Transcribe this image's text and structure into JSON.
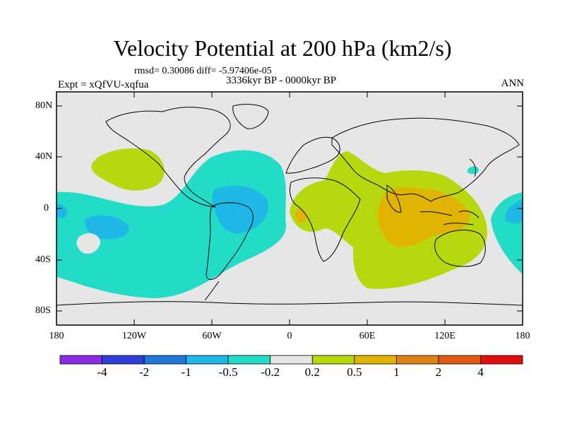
{
  "title": "Velocity Potential at 200 hPa (km2/s)",
  "stats_line": "rmsd= 0.30086 diff= -5.97406e-05",
  "period": "3336kyr BP - 0000kyr BP",
  "experiment": "Expt = xQfVU-xqfua",
  "season": "ANN",
  "y_ticks": [
    "80N",
    "40N",
    "0",
    "40S",
    "80S"
  ],
  "x_ticks": [
    "180",
    "120W",
    "60W",
    "0",
    "60E",
    "120E",
    "180"
  ],
  "colorbar": {
    "labels": [
      "-4",
      "-2",
      "-1",
      "-0.5",
      "-0.2",
      "0.2",
      "0.5",
      "1",
      "2",
      "4"
    ],
    "colors": [
      "#8a2be2",
      "#2f3fd6",
      "#1f78d8",
      "#1eb7e6",
      "#22dcc8",
      "#e6e6e6",
      "#b9d70f",
      "#e0b400",
      "#e08214",
      "#e05a10",
      "#e01010"
    ]
  },
  "palette": {
    "ocean": "#e6e6e6",
    "neg_weak": "#22dcc8",
    "neg_mod": "#1eb7e6",
    "pos_weak": "#b9d70f",
    "pos_mod": "#e0b400",
    "coast": "#000000"
  }
}
